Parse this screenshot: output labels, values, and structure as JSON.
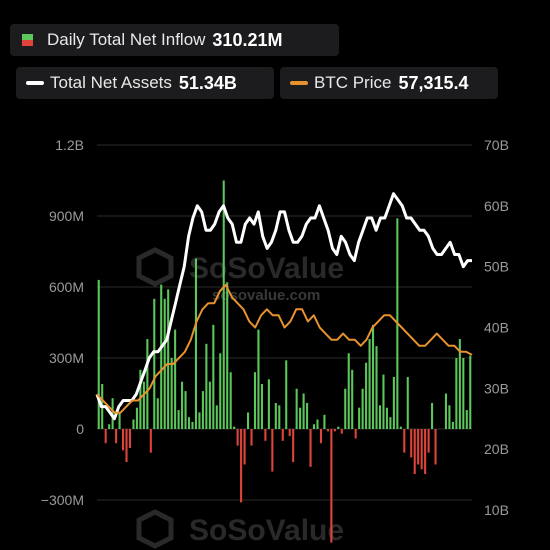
{
  "legend": {
    "inflow": {
      "label": "Daily Total Net Inflow",
      "value": "310.21M"
    },
    "assets": {
      "label": "Total Net Assets",
      "value": "51.34B",
      "color": "#ffffff"
    },
    "btc": {
      "label": "BTC Price",
      "value": "57,315.4",
      "color": "#e8922e"
    }
  },
  "watermark": {
    "brand": "SoSoValue",
    "site": "sosovalue.com"
  },
  "colors": {
    "positive": "#5cc85c",
    "negative": "#e0443a",
    "grid": "#2c2c2c"
  },
  "chart_data": {
    "type": "bar",
    "left_axis": {
      "ticks": [
        "1.2B",
        "900M",
        "600M",
        "300M",
        "0",
        "−300M"
      ],
      "range": [
        -300,
        1200
      ]
    },
    "right_axis": {
      "ticks": [
        "70B",
        "60B",
        "50B",
        "40B",
        "30B",
        "20B",
        "10B"
      ],
      "range": [
        10,
        70
      ]
    },
    "series": [
      {
        "name": "Daily Total Net Inflow",
        "type": "bar",
        "values_millions": [
          630,
          190,
          -60,
          20,
          130,
          -60,
          70,
          -90,
          -140,
          -80,
          40,
          90,
          250,
          200,
          380,
          -100,
          550,
          130,
          610,
          550,
          590,
          300,
          420,
          80,
          200,
          160,
          50,
          30,
          720,
          70,
          160,
          360,
          200,
          440,
          100,
          320,
          1050,
          620,
          240,
          10,
          -70,
          -310,
          -150,
          70,
          -70,
          240,
          420,
          190,
          -50,
          210,
          -180,
          110,
          100,
          -50,
          290,
          -30,
          -140,
          170,
          90,
          150,
          110,
          -160,
          20,
          40,
          -60,
          60,
          -10,
          -480,
          -10,
          10,
          -20,
          170,
          320,
          250,
          -40,
          90,
          170,
          280,
          380,
          440,
          350,
          100,
          230,
          90,
          50,
          220,
          890,
          10,
          -100,
          220,
          -120,
          -190,
          -150,
          -170,
          -190,
          -100,
          110,
          -150,
          0,
          0,
          150,
          100,
          30,
          300,
          380,
          300,
          80,
          310
        ]
      },
      {
        "name": "Total Net Assets",
        "type": "line",
        "values_billions": [
          29,
          27,
          27,
          26,
          25,
          27,
          28,
          28,
          28,
          29,
          31,
          33,
          35,
          36,
          36,
          37,
          38,
          41,
          44,
          47,
          50,
          55,
          58,
          60,
          59,
          56,
          56,
          57,
          59,
          60,
          58,
          57,
          54,
          54,
          57,
          58,
          57,
          59,
          55,
          53,
          54,
          56,
          59,
          59,
          56,
          54,
          54,
          55,
          57,
          58,
          58,
          60,
          58,
          56,
          53,
          52,
          55,
          54,
          52,
          51,
          54,
          56,
          58,
          58,
          56,
          58,
          58,
          60,
          62,
          61,
          60,
          58,
          58,
          57,
          56,
          56,
          55,
          53,
          52,
          52,
          53,
          54,
          52,
          52,
          50,
          51,
          51
        ]
      },
      {
        "name": "BTC Price",
        "type": "line",
        "relative_values": [
          29,
          28,
          27,
          26,
          26,
          27,
          28,
          28,
          29,
          30,
          32,
          33,
          34,
          34,
          35,
          36,
          38,
          41,
          43,
          44,
          44,
          46,
          47,
          45,
          44,
          43,
          41,
          40,
          42,
          43,
          42,
          42,
          40,
          41,
          43,
          43,
          41,
          42,
          40,
          39,
          38,
          38,
          39,
          38,
          38,
          37,
          38,
          40,
          41,
          42,
          42,
          41,
          40,
          39,
          38,
          37,
          37,
          38,
          39,
          38,
          37,
          37,
          36,
          36,
          35.5
        ]
      }
    ]
  }
}
